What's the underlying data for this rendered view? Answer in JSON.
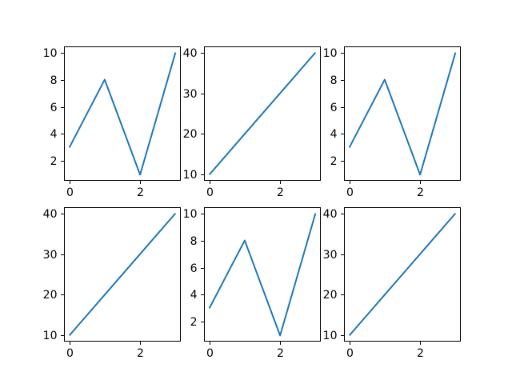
{
  "figure": {
    "background": "#ffffff",
    "rows": 2,
    "cols": 3,
    "spine_color": "#000000",
    "tick_color": "#000000"
  },
  "chart_data": [
    {
      "type": "line",
      "title": "",
      "xlabel": "",
      "ylabel": "",
      "x": [
        0,
        1,
        2,
        3
      ],
      "y": [
        3,
        8,
        1,
        10
      ],
      "xlim": [
        -0.15,
        3.15
      ],
      "ylim": [
        0.55,
        10.45
      ],
      "xticks": [
        0,
        2
      ],
      "yticks": [
        2,
        4,
        6,
        8,
        10
      ],
      "line_color": "#1f77b4",
      "grid": false,
      "legend": null
    },
    {
      "type": "line",
      "title": "",
      "xlabel": "",
      "ylabel": "",
      "x": [
        0,
        1,
        2,
        3
      ],
      "y": [
        10,
        20,
        30,
        40
      ],
      "xlim": [
        -0.15,
        3.15
      ],
      "ylim": [
        8.5,
        41.5
      ],
      "xticks": [
        0,
        2
      ],
      "yticks": [
        10,
        20,
        30,
        40
      ],
      "line_color": "#1f77b4",
      "grid": false,
      "legend": null
    },
    {
      "type": "line",
      "title": "",
      "xlabel": "",
      "ylabel": "",
      "x": [
        0,
        1,
        2,
        3
      ],
      "y": [
        3,
        8,
        1,
        10
      ],
      "xlim": [
        -0.15,
        3.15
      ],
      "ylim": [
        0.55,
        10.45
      ],
      "xticks": [
        0,
        2
      ],
      "yticks": [
        2,
        4,
        6,
        8,
        10
      ],
      "line_color": "#1f77b4",
      "grid": false,
      "legend": null
    },
    {
      "type": "line",
      "title": "",
      "xlabel": "",
      "ylabel": "",
      "x": [
        0,
        1,
        2,
        3
      ],
      "y": [
        10,
        20,
        30,
        40
      ],
      "xlim": [
        -0.15,
        3.15
      ],
      "ylim": [
        8.5,
        41.5
      ],
      "xticks": [
        0,
        2
      ],
      "yticks": [
        10,
        20,
        30,
        40
      ],
      "line_color": "#1f77b4",
      "grid": false,
      "legend": null
    },
    {
      "type": "line",
      "title": "",
      "xlabel": "",
      "ylabel": "",
      "x": [
        0,
        1,
        2,
        3
      ],
      "y": [
        3,
        8,
        1,
        10
      ],
      "xlim": [
        -0.15,
        3.15
      ],
      "ylim": [
        0.55,
        10.45
      ],
      "xticks": [
        0,
        2
      ],
      "yticks": [
        2,
        4,
        6,
        8,
        10
      ],
      "line_color": "#1f77b4",
      "grid": false,
      "legend": null
    },
    {
      "type": "line",
      "title": "",
      "xlabel": "",
      "ylabel": "",
      "x": [
        0,
        1,
        2,
        3
      ],
      "y": [
        10,
        20,
        30,
        40
      ],
      "xlim": [
        -0.15,
        3.15
      ],
      "ylim": [
        8.5,
        41.5
      ],
      "xticks": [
        0,
        2
      ],
      "yticks": [
        10,
        20,
        30,
        40
      ],
      "line_color": "#1f77b4",
      "grid": false,
      "legend": null
    }
  ]
}
